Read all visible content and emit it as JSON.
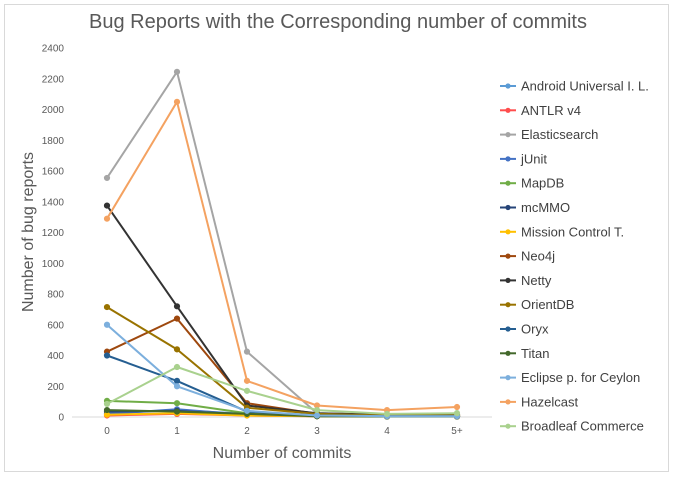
{
  "chart_data": {
    "type": "line",
    "title": "Bug Reports with the Corresponding number of commits",
    "xlabel": "Number of commits",
    "ylabel": "Number of bug reports",
    "categories": [
      "0",
      "1",
      "2",
      "3",
      "4",
      "5+"
    ],
    "ylim": [
      0,
      2400
    ],
    "yticks": [
      "0",
      "200",
      "400",
      "600",
      "800",
      "1000",
      "1200",
      "1400",
      "1600",
      "1800",
      "2000",
      "2200",
      "2400"
    ],
    "grid": false,
    "legend_position": "right",
    "series": [
      {
        "name": "Android Universal I. L.",
        "color": "#5b9bd5",
        "values": [
          25,
          45,
          20,
          5,
          5,
          5
        ]
      },
      {
        "name": "ANTLR v4",
        "color": "#ff4d4d",
        "values": [
          10,
          20,
          10,
          5,
          3,
          3
        ]
      },
      {
        "name": "Elasticsearch",
        "color": "#a5a5a5",
        "values": [
          1555,
          2245,
          425,
          25,
          15,
          10
        ]
      },
      {
        "name": "jUnit",
        "color": "#4472c4",
        "values": [
          20,
          50,
          15,
          5,
          3,
          3
        ]
      },
      {
        "name": "MapDB",
        "color": "#70ad47",
        "values": [
          105,
          90,
          25,
          10,
          5,
          5
        ]
      },
      {
        "name": "mcMMO",
        "color": "#264478",
        "values": [
          35,
          40,
          15,
          5,
          3,
          3
        ]
      },
      {
        "name": "Mission Control T.",
        "color": "#ffc000",
        "values": [
          15,
          25,
          10,
          5,
          3,
          3
        ]
      },
      {
        "name": "Neo4j",
        "color": "#9e480e",
        "values": [
          425,
          640,
          90,
          20,
          10,
          10
        ]
      },
      {
        "name": "Netty",
        "color": "#333333",
        "values": [
          1375,
          720,
          75,
          25,
          15,
          15
        ]
      },
      {
        "name": "OrientDB",
        "color": "#997300",
        "values": [
          715,
          440,
          60,
          20,
          10,
          10
        ]
      },
      {
        "name": "Oryx",
        "color": "#255e91",
        "values": [
          400,
          235,
          35,
          10,
          5,
          5
        ]
      },
      {
        "name": "Titan",
        "color": "#43682b",
        "values": [
          45,
          35,
          20,
          5,
          3,
          3
        ]
      },
      {
        "name": "Eclipse p. for Ceylon",
        "color": "#7cafdd",
        "values": [
          600,
          200,
          40,
          10,
          5,
          5
        ]
      },
      {
        "name": "Hazelcast",
        "color": "#f4a261",
        "values": [
          1290,
          2050,
          235,
          75,
          45,
          65
        ]
      },
      {
        "name": "Broadleaf Commerce",
        "color": "#a9d18e",
        "values": [
          85,
          325,
          170,
          45,
          20,
          25
        ]
      }
    ]
  }
}
